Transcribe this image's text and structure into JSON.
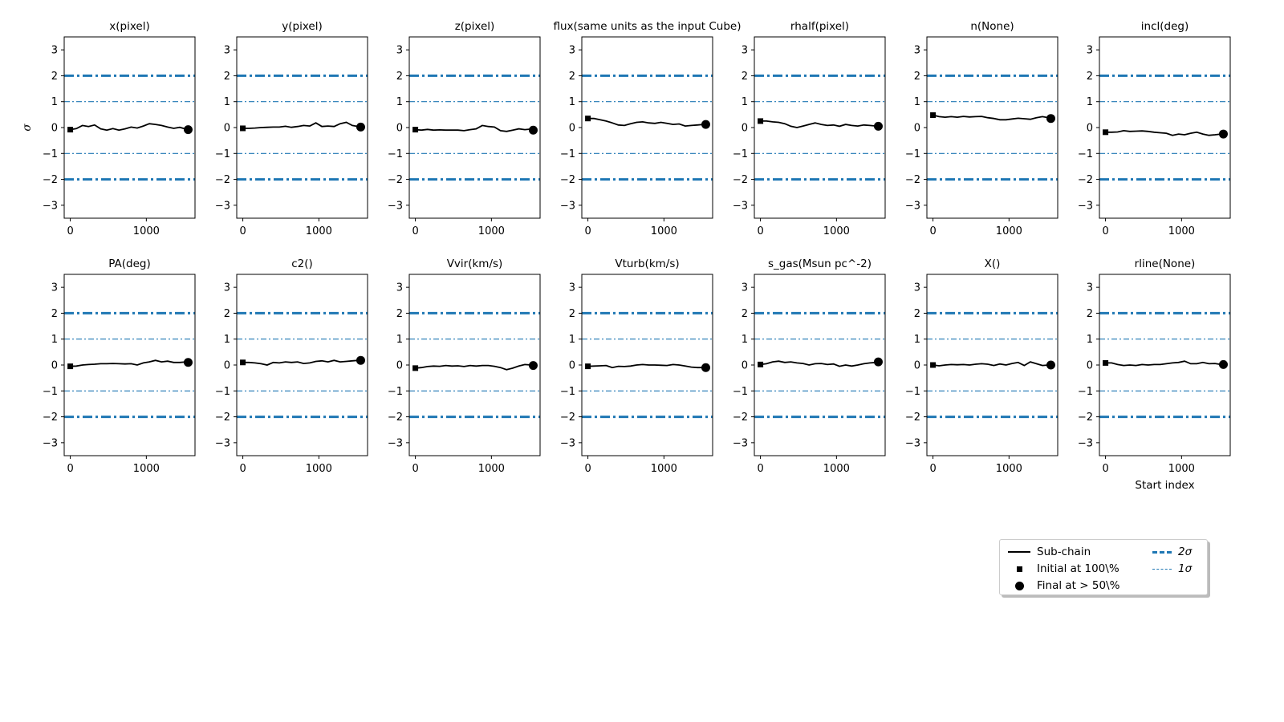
{
  "chart_data": {
    "type": "line",
    "layout": "grid 2x7 of small-multiple line plots",
    "ylabel": "σ",
    "xlabel": "Start index",
    "xlim": [
      -80,
      1640
    ],
    "ylim": [
      -3.5,
      3.5
    ],
    "x_ticks": [
      0,
      1000
    ],
    "y_ticks": [
      3,
      2,
      1,
      0,
      -1,
      -2,
      -3
    ],
    "reference_lines": [
      {
        "y": 2,
        "style": "dash-dot thick",
        "color": "#1f77b4"
      },
      {
        "y": -2,
        "style": "dash-dot thick",
        "color": "#1f77b4"
      },
      {
        "y": 1,
        "style": "dash-dot thin",
        "color": "#1f77b4"
      },
      {
        "y": -1,
        "style": "dash-dot thin",
        "color": "#1f77b4"
      }
    ],
    "x": [
      0,
      80,
      160,
      240,
      320,
      400,
      480,
      560,
      640,
      720,
      800,
      880,
      960,
      1040,
      1120,
      1200,
      1280,
      1360,
      1440,
      1520,
      1550
    ],
    "panels": [
      {
        "title": "x(pixel)",
        "values": [
          -0.08,
          -0.04,
          0.08,
          0.04,
          0.1,
          -0.05,
          -0.1,
          -0.04,
          -0.1,
          -0.05,
          0.02,
          -0.02,
          0.06,
          0.15,
          0.12,
          0.08,
          0.02,
          -0.03,
          0.01,
          -0.06,
          -0.08
        ]
      },
      {
        "title": "y(pixel)",
        "values": [
          -0.03,
          -0.03,
          -0.02,
          0.0,
          0.01,
          0.02,
          0.02,
          0.05,
          0.01,
          0.04,
          0.08,
          0.06,
          0.18,
          0.04,
          0.06,
          0.04,
          0.15,
          0.2,
          0.08,
          0.04,
          0.02
        ]
      },
      {
        "title": "z(pixel)",
        "values": [
          -0.08,
          -0.1,
          -0.07,
          -0.1,
          -0.09,
          -0.1,
          -0.1,
          -0.1,
          -0.12,
          -0.08,
          -0.05,
          0.08,
          0.04,
          0.02,
          -0.12,
          -0.15,
          -0.1,
          -0.05,
          -0.08,
          -0.06,
          -0.1
        ]
      },
      {
        "title": "flux(same units as the input Cube)",
        "values": [
          0.35,
          0.35,
          0.3,
          0.25,
          0.18,
          0.1,
          0.08,
          0.15,
          0.2,
          0.22,
          0.18,
          0.16,
          0.2,
          0.16,
          0.12,
          0.14,
          0.06,
          0.08,
          0.1,
          0.12,
          0.12
        ]
      },
      {
        "title": "rhalf(pixel)",
        "values": [
          0.25,
          0.25,
          0.22,
          0.2,
          0.15,
          0.05,
          0.0,
          0.06,
          0.12,
          0.18,
          0.12,
          0.08,
          0.1,
          0.05,
          0.12,
          0.08,
          0.06,
          0.1,
          0.08,
          0.06,
          0.05
        ]
      },
      {
        "title": "n(None)",
        "values": [
          0.48,
          0.42,
          0.4,
          0.42,
          0.4,
          0.43,
          0.41,
          0.42,
          0.43,
          0.38,
          0.35,
          0.3,
          0.3,
          0.33,
          0.36,
          0.34,
          0.32,
          0.38,
          0.42,
          0.38,
          0.35
        ]
      },
      {
        "title": "incl(deg)",
        "values": [
          -0.18,
          -0.18,
          -0.17,
          -0.12,
          -0.15,
          -0.14,
          -0.13,
          -0.15,
          -0.18,
          -0.2,
          -0.22,
          -0.3,
          -0.25,
          -0.28,
          -0.22,
          -0.18,
          -0.25,
          -0.3,
          -0.28,
          -0.25,
          -0.25
        ]
      },
      {
        "title": "PA(deg)",
        "values": [
          -0.05,
          -0.04,
          0.0,
          0.02,
          0.03,
          0.05,
          0.05,
          0.06,
          0.05,
          0.04,
          0.05,
          0.0,
          0.08,
          0.12,
          0.18,
          0.12,
          0.15,
          0.1,
          0.1,
          0.12,
          0.1
        ]
      },
      {
        "title": "c2()",
        "values": [
          0.1,
          0.1,
          0.08,
          0.05,
          0.0,
          0.1,
          0.08,
          0.12,
          0.1,
          0.12,
          0.06,
          0.08,
          0.14,
          0.16,
          0.12,
          0.18,
          0.12,
          0.14,
          0.16,
          0.18,
          0.18
        ]
      },
      {
        "title": "Vvir(km/s)",
        "values": [
          -0.12,
          -0.1,
          -0.06,
          -0.04,
          -0.05,
          -0.02,
          -0.04,
          -0.03,
          -0.06,
          -0.02,
          -0.04,
          -0.02,
          -0.02,
          -0.05,
          -0.1,
          -0.18,
          -0.12,
          -0.04,
          0.02,
          0.0,
          -0.02
        ]
      },
      {
        "title": "Vturb(km/s)",
        "values": [
          -0.05,
          -0.04,
          -0.03,
          -0.02,
          -0.1,
          -0.05,
          -0.06,
          -0.04,
          0.0,
          0.02,
          0.0,
          0.0,
          -0.01,
          -0.02,
          0.02,
          0.0,
          -0.04,
          -0.08,
          -0.1,
          -0.1,
          -0.1
        ]
      },
      {
        "title": "s_gas(Msun pc^-2)",
        "values": [
          0.02,
          0.05,
          0.12,
          0.15,
          0.1,
          0.12,
          0.08,
          0.06,
          0.0,
          0.05,
          0.06,
          0.02,
          0.04,
          -0.05,
          0.0,
          -0.04,
          0.0,
          0.05,
          0.08,
          0.1,
          0.12
        ]
      },
      {
        "title": "X()",
        "values": [
          0.0,
          -0.03,
          0.0,
          0.02,
          0.01,
          0.02,
          0.0,
          0.03,
          0.05,
          0.03,
          -0.02,
          0.04,
          0.0,
          0.06,
          0.1,
          -0.02,
          0.12,
          0.05,
          -0.02,
          0.0,
          0.0
        ]
      },
      {
        "title": "rline(None)",
        "values": [
          0.08,
          0.08,
          0.02,
          -0.02,
          0.0,
          -0.02,
          0.02,
          0.0,
          0.02,
          0.02,
          0.05,
          0.08,
          0.1,
          0.15,
          0.05,
          0.05,
          0.1,
          0.05,
          0.06,
          0.02,
          0.02
        ]
      }
    ],
    "legend": {
      "placement": "lower-right",
      "entries": [
        {
          "label": "Sub-chain",
          "marker": "line",
          "color": "#000000"
        },
        {
          "label": "Initial at 100\\%",
          "marker": "square",
          "color": "#000000"
        },
        {
          "label": "Final at $>50$\\%",
          "marker": "circle",
          "color": "#000000"
        },
        {
          "label": "2σ",
          "marker": "thick dash-dot",
          "color": "#1f77b4"
        },
        {
          "label": "1σ",
          "marker": "thin dash-dot",
          "color": "#1f77b4"
        }
      ]
    }
  },
  "legend": {
    "sub_chain": "Sub-chain",
    "initial": "Initial at 100\\%",
    "final": "Final at  > 50\\%",
    "two_sigma": "2σ",
    "one_sigma": "1σ"
  }
}
